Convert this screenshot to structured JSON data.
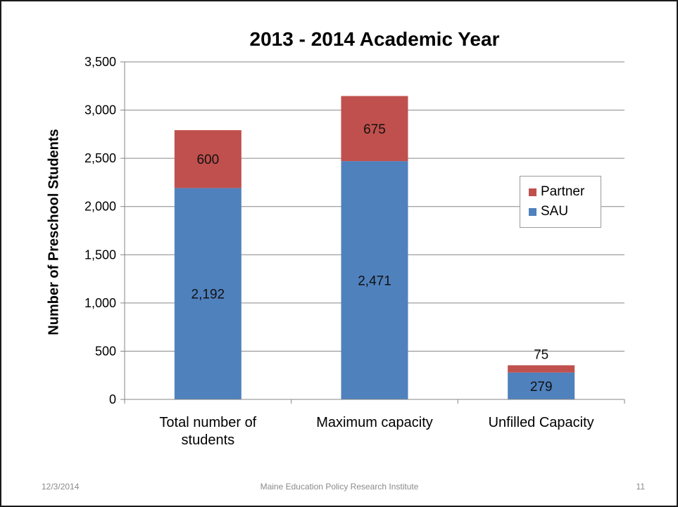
{
  "chart_data": {
    "type": "bar",
    "stacked": true,
    "title": "2013 - 2014 Academic Year",
    "xlabel": "",
    "ylabel": "Number of Preschool Students",
    "ylim": [
      0,
      3500
    ],
    "yticks": [
      0,
      500,
      1000,
      1500,
      2000,
      2500,
      3000,
      3500
    ],
    "ytick_labels": [
      "0",
      "500",
      "1,000",
      "1,500",
      "2,000",
      "2,500",
      "3,000",
      "3,500"
    ],
    "grid": true,
    "legend_position": "right",
    "categories": [
      "Total number of students",
      "Maximum capacity",
      "Unfilled Capacity"
    ],
    "category_lines": [
      [
        "Total number of",
        "students"
      ],
      [
        "Maximum capacity"
      ],
      [
        "Unfilled Capacity"
      ]
    ],
    "series": [
      {
        "name": "SAU",
        "color": "#4f81bd",
        "values": [
          2192,
          2471,
          279
        ],
        "value_labels": [
          "2,192",
          "2,471",
          "279"
        ]
      },
      {
        "name": "Partner",
        "color": "#c0504d",
        "values": [
          600,
          675,
          75
        ],
        "value_labels": [
          "600",
          "675",
          "75"
        ]
      }
    ]
  },
  "legend": {
    "entries": [
      {
        "name": "Partner",
        "color": "#c0504d"
      },
      {
        "name": "SAU",
        "color": "#4f81bd"
      }
    ]
  },
  "footer": {
    "date": "12/3/2014",
    "organization": "Maine Education Policy Research Institute",
    "page_number": "11"
  },
  "colors": {
    "gridline": "#868686",
    "axis": "#868686"
  }
}
